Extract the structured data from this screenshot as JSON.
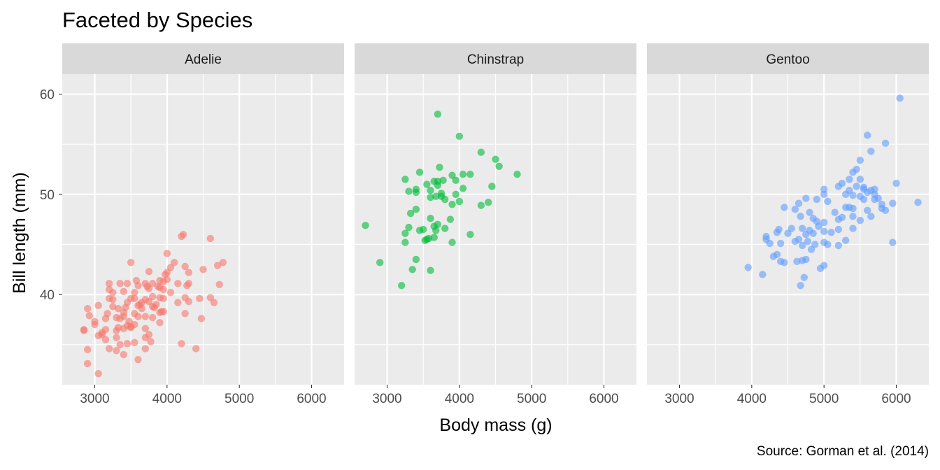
{
  "chart_data": {
    "type": "scatter",
    "title": "Faceted by Species",
    "xlabel": "Body mass (g)",
    "ylabel": "Bill length (mm)",
    "caption": "Source: Gorman et al. (2014)",
    "xlim": [
      2550,
      6450
    ],
    "ylim": [
      31,
      62
    ],
    "x_ticks": [
      3000,
      4000,
      5000,
      6000
    ],
    "y_ticks": [
      40,
      50,
      60
    ],
    "grid": true,
    "facets": [
      {
        "name": "Adelie",
        "color": "#F8766D",
        "points": [
          [
            2850,
            36.5
          ],
          [
            2850,
            36.4
          ],
          [
            2900,
            38.6
          ],
          [
            2900,
            34.5
          ],
          [
            2900,
            33.1
          ],
          [
            2925,
            37.9
          ],
          [
            3000,
            37.3
          ],
          [
            3000,
            37.0
          ],
          [
            3050,
            38.9
          ],
          [
            3050,
            35.9
          ],
          [
            3050,
            32.1
          ],
          [
            3100,
            36.0
          ],
          [
            3100,
            36.2
          ],
          [
            3150,
            35.5
          ],
          [
            3150,
            37.6
          ],
          [
            3150,
            36.5
          ],
          [
            3175,
            38.1
          ],
          [
            3200,
            41.1
          ],
          [
            3200,
            40.5
          ],
          [
            3200,
            39.6
          ],
          [
            3200,
            34.6
          ],
          [
            3250,
            38.8
          ],
          [
            3250,
            40.2
          ],
          [
            3250,
            39.5
          ],
          [
            3300,
            37.7
          ],
          [
            3300,
            36.4
          ],
          [
            3300,
            35.7
          ],
          [
            3300,
            34.4
          ],
          [
            3325,
            38.6
          ],
          [
            3325,
            36.7
          ],
          [
            3350,
            41.1
          ],
          [
            3350,
            37.6
          ],
          [
            3350,
            35.0
          ],
          [
            3400,
            40.3
          ],
          [
            3400,
            38.2
          ],
          [
            3400,
            37.8
          ],
          [
            3400,
            36.6
          ],
          [
            3400,
            34.0
          ],
          [
            3425,
            38.7
          ],
          [
            3450,
            41.1
          ],
          [
            3450,
            39.2
          ],
          [
            3450,
            36.9
          ],
          [
            3450,
            35.1
          ],
          [
            3475,
            37.3
          ],
          [
            3500,
            43.2
          ],
          [
            3500,
            39.6
          ],
          [
            3500,
            36.7
          ],
          [
            3500,
            36.8
          ],
          [
            3550,
            40.2
          ],
          [
            3550,
            39.6
          ],
          [
            3550,
            38.1
          ],
          [
            3550,
            37.0
          ],
          [
            3550,
            35.2
          ],
          [
            3575,
            41.4
          ],
          [
            3600,
            40.9
          ],
          [
            3600,
            38.9
          ],
          [
            3600,
            37.8
          ],
          [
            3600,
            33.5
          ],
          [
            3625,
            39.0
          ],
          [
            3650,
            39.2
          ],
          [
            3650,
            38.6
          ],
          [
            3700,
            41.1
          ],
          [
            3700,
            39.5
          ],
          [
            3700,
            37.8
          ],
          [
            3700,
            36.6
          ],
          [
            3700,
            35.7
          ],
          [
            3700,
            34.6
          ],
          [
            3725,
            40.8
          ],
          [
            3750,
            42.3
          ],
          [
            3750,
            40.6
          ],
          [
            3750,
            39.3
          ],
          [
            3750,
            36.0
          ],
          [
            3775,
            35.3
          ],
          [
            3800,
            41.1
          ],
          [
            3800,
            39.8
          ],
          [
            3800,
            38.8
          ],
          [
            3800,
            37.7
          ],
          [
            3825,
            38.7
          ],
          [
            3850,
            39.0
          ],
          [
            3875,
            40.8
          ],
          [
            3900,
            41.4
          ],
          [
            3900,
            40.7
          ],
          [
            3900,
            39.7
          ],
          [
            3900,
            38.2
          ],
          [
            3900,
            37.2
          ],
          [
            3925,
            38.3
          ],
          [
            3950,
            41.3
          ],
          [
            3950,
            40.5
          ],
          [
            3950,
            39.6
          ],
          [
            3950,
            38.3
          ],
          [
            3975,
            42.0
          ],
          [
            4000,
            44.1
          ],
          [
            4000,
            42.2
          ],
          [
            4000,
            41.5
          ],
          [
            4050,
            42.7
          ],
          [
            4050,
            40.2
          ],
          [
            4100,
            43.2
          ],
          [
            4150,
            39.2
          ],
          [
            4150,
            41.1
          ],
          [
            4200,
            45.8
          ],
          [
            4200,
            35.1
          ],
          [
            4225,
            46.0
          ],
          [
            4250,
            42.8
          ],
          [
            4250,
            39.7
          ],
          [
            4250,
            38.1
          ],
          [
            4275,
            40.9
          ],
          [
            4300,
            42.2
          ],
          [
            4300,
            41.1
          ],
          [
            4300,
            39.3
          ],
          [
            4400,
            34.6
          ],
          [
            4450,
            39.6
          ],
          [
            4475,
            37.6
          ],
          [
            4500,
            42.5
          ],
          [
            4600,
            45.6
          ],
          [
            4600,
            39.7
          ],
          [
            4650,
            39.2
          ],
          [
            4700,
            42.9
          ],
          [
            4725,
            41.0
          ],
          [
            4775,
            43.2
          ]
        ]
      },
      {
        "name": "Chinstrap",
        "color": "#00BA38",
        "points": [
          [
            2700,
            46.9
          ],
          [
            2900,
            43.2
          ],
          [
            3200,
            40.9
          ],
          [
            3250,
            51.5
          ],
          [
            3250,
            46.1
          ],
          [
            3250,
            45.2
          ],
          [
            3300,
            50.3
          ],
          [
            3300,
            46.7
          ],
          [
            3325,
            48.1
          ],
          [
            3350,
            42.5
          ],
          [
            3400,
            50.5
          ],
          [
            3400,
            50.2
          ],
          [
            3400,
            48.5
          ],
          [
            3400,
            43.5
          ],
          [
            3450,
            52.2
          ],
          [
            3450,
            46.4
          ],
          [
            3500,
            46.5
          ],
          [
            3525,
            45.4
          ],
          [
            3550,
            51.0
          ],
          [
            3550,
            45.5
          ],
          [
            3575,
            45.6
          ],
          [
            3600,
            50.4
          ],
          [
            3600,
            49.7
          ],
          [
            3600,
            47.6
          ],
          [
            3600,
            42.4
          ],
          [
            3650,
            51.3
          ],
          [
            3650,
            46.8
          ],
          [
            3650,
            45.7
          ],
          [
            3675,
            49.8
          ],
          [
            3675,
            46.4
          ],
          [
            3700,
            58.0
          ],
          [
            3700,
            51.3
          ],
          [
            3700,
            50.9
          ],
          [
            3700,
            47.0
          ],
          [
            3725,
            52.7
          ],
          [
            3750,
            50.1
          ],
          [
            3750,
            49.8
          ],
          [
            3775,
            51.4
          ],
          [
            3800,
            49.5
          ],
          [
            3800,
            46.6
          ],
          [
            3875,
            47.5
          ],
          [
            3900,
            51.9
          ],
          [
            3900,
            49.0
          ],
          [
            3900,
            45.2
          ],
          [
            3950,
            51.4
          ],
          [
            3950,
            50.0
          ],
          [
            4000,
            55.8
          ],
          [
            4000,
            49.3
          ],
          [
            4050,
            52.0
          ],
          [
            4050,
            50.6
          ],
          [
            4150,
            52.0
          ],
          [
            4150,
            46.0
          ],
          [
            4300,
            54.2
          ],
          [
            4300,
            48.9
          ],
          [
            4400,
            49.2
          ],
          [
            4450,
            50.8
          ],
          [
            4500,
            53.5
          ],
          [
            4550,
            52.8
          ],
          [
            4800,
            52.0
          ]
        ]
      },
      {
        "name": "Gentoo",
        "color": "#619CFF",
        "points": [
          [
            3950,
            42.7
          ],
          [
            4150,
            42.0
          ],
          [
            4200,
            45.8
          ],
          [
            4200,
            45.5
          ],
          [
            4250,
            45.1
          ],
          [
            4300,
            43.8
          ],
          [
            4350,
            46.2
          ],
          [
            4350,
            44.0
          ],
          [
            4375,
            46.5
          ],
          [
            4400,
            45.1
          ],
          [
            4400,
            43.3
          ],
          [
            4450,
            48.7
          ],
          [
            4450,
            43.2
          ],
          [
            4500,
            46.1
          ],
          [
            4550,
            46.6
          ],
          [
            4600,
            48.5
          ],
          [
            4600,
            45.3
          ],
          [
            4625,
            43.3
          ],
          [
            4650,
            49.1
          ],
          [
            4650,
            45.5
          ],
          [
            4675,
            47.8
          ],
          [
            4675,
            40.9
          ],
          [
            4700,
            46.6
          ],
          [
            4700,
            44.9
          ],
          [
            4700,
            43.4
          ],
          [
            4725,
            41.7
          ],
          [
            4750,
            49.6
          ],
          [
            4750,
            46.0
          ],
          [
            4750,
            43.5
          ],
          [
            4775,
            45.3
          ],
          [
            4800,
            48.2
          ],
          [
            4800,
            46.4
          ],
          [
            4825,
            44.5
          ],
          [
            4850,
            47.6
          ],
          [
            4850,
            46.1
          ],
          [
            4875,
            45.0
          ],
          [
            4900,
            49.5
          ],
          [
            4900,
            47.3
          ],
          [
            4925,
            46.8
          ],
          [
            4950,
            42.6
          ],
          [
            5000,
            50.5
          ],
          [
            5000,
            50.0
          ],
          [
            5000,
            47.2
          ],
          [
            5000,
            46.3
          ],
          [
            5000,
            45.2
          ],
          [
            5000,
            42.9
          ],
          [
            5050,
            49.3
          ],
          [
            5050,
            45.0
          ],
          [
            5100,
            46.2
          ],
          [
            5150,
            48.2
          ],
          [
            5200,
            50.8
          ],
          [
            5200,
            47.5
          ],
          [
            5200,
            46.5
          ],
          [
            5200,
            44.9
          ],
          [
            5250,
            51.1
          ],
          [
            5250,
            47.7
          ],
          [
            5300,
            50.0
          ],
          [
            5300,
            48.7
          ],
          [
            5300,
            45.4
          ],
          [
            5350,
            51.5
          ],
          [
            5350,
            50.4
          ],
          [
            5350,
            48.7
          ],
          [
            5400,
            52.2
          ],
          [
            5400,
            49.9
          ],
          [
            5400,
            48.6
          ],
          [
            5400,
            47.8
          ],
          [
            5400,
            46.6
          ],
          [
            5450,
            52.5
          ],
          [
            5450,
            50.8
          ],
          [
            5500,
            53.4
          ],
          [
            5500,
            51.5
          ],
          [
            5500,
            49.8
          ],
          [
            5500,
            47.4
          ],
          [
            5550,
            50.7
          ],
          [
            5550,
            50.5
          ],
          [
            5550,
            49.5
          ],
          [
            5600,
            55.9
          ],
          [
            5600,
            50.2
          ],
          [
            5600,
            48.4
          ],
          [
            5650,
            54.3
          ],
          [
            5650,
            50.4
          ],
          [
            5650,
            47.8
          ],
          [
            5700,
            50.5
          ],
          [
            5700,
            50.0
          ],
          [
            5700,
            49.5
          ],
          [
            5750,
            49.6
          ],
          [
            5800,
            49.0
          ],
          [
            5800,
            48.6
          ],
          [
            5850,
            55.1
          ],
          [
            5850,
            48.4
          ],
          [
            5950,
            49.1
          ],
          [
            5950,
            45.2
          ],
          [
            6000,
            51.1
          ],
          [
            6050,
            59.6
          ],
          [
            6300,
            49.2
          ]
        ]
      }
    ]
  }
}
